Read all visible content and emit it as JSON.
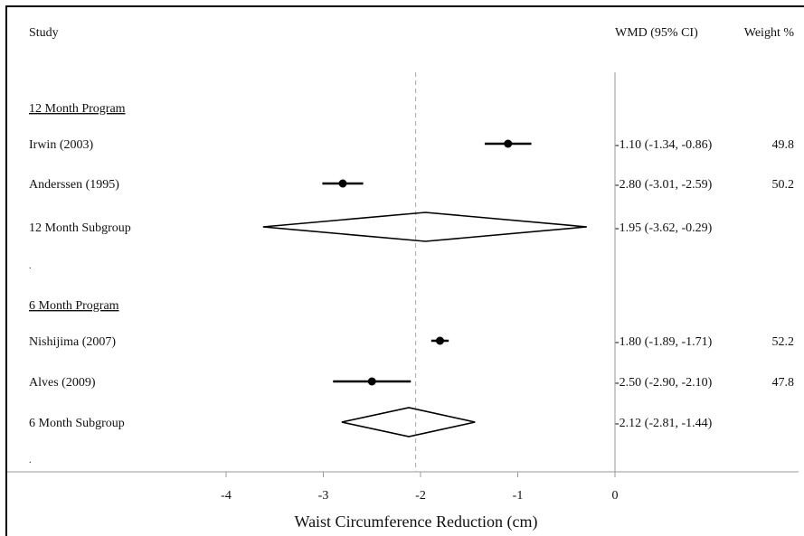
{
  "chart_data": {
    "type": "forest",
    "xlabel": "Waist Circumference Reduction (cm)",
    "xlim": [
      -4.6,
      0.0
    ],
    "x_ticks": [
      -4,
      -3,
      -2,
      -1,
      0
    ],
    "reference_line": 0,
    "pooled_overall_line": -2.05,
    "headers": {
      "study": "Study",
      "wmd": "WMD (95% CI)",
      "weight": "Weight %"
    },
    "groups": [
      {
        "label": "12 Month Program",
        "studies": [
          {
            "name": "Irwin (2003)",
            "est": -1.1,
            "lo": -1.34,
            "hi": -0.86,
            "ci_text": "-1.10 (-1.34, -0.86)",
            "weight": "49.8"
          },
          {
            "name": "Anderssen (1995)",
            "est": -2.8,
            "lo": -3.01,
            "hi": -2.59,
            "ci_text": "-2.80 (-3.01, -2.59)",
            "weight": "50.2"
          }
        ],
        "subgroup": {
          "name": "12 Month Subgroup",
          "est": -1.95,
          "lo": -3.62,
          "hi": -0.29,
          "ci_text": "-1.95 (-3.62, -0.29)"
        },
        "spacer": "."
      },
      {
        "label": "6 Month Program",
        "studies": [
          {
            "name": "Nishijima (2007)",
            "est": -1.8,
            "lo": -1.89,
            "hi": -1.71,
            "ci_text": "-1.80 (-1.89, -1.71)",
            "weight": "52.2"
          },
          {
            "name": "Alves (2009)",
            "est": -2.5,
            "lo": -2.9,
            "hi": -2.1,
            "ci_text": "-2.50 (-2.90, -2.10)",
            "weight": "47.8"
          }
        ],
        "subgroup": {
          "name": "6 Month Subgroup",
          "est": -2.12,
          "lo": -2.81,
          "hi": -1.44,
          "ci_text": "-2.12 (-2.81, -1.44)"
        },
        "spacer": "."
      }
    ]
  }
}
